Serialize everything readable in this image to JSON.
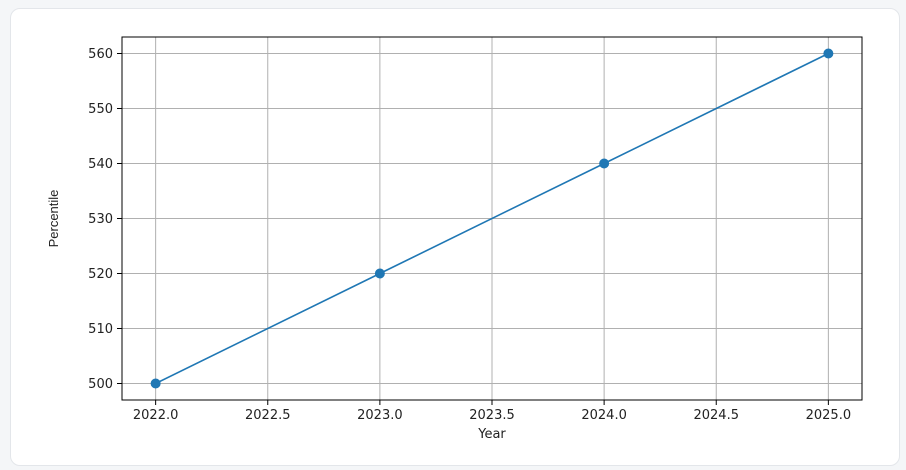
{
  "chart_data": {
    "type": "line",
    "title": "",
    "xlabel": "Year",
    "ylabel": "Percentile",
    "x": [
      2022,
      2023,
      2024,
      2025
    ],
    "series": [
      {
        "values": [
          500,
          520,
          540,
          560
        ],
        "color": "#1f77b4",
        "marker": "circle"
      }
    ],
    "xlim": [
      2021.85,
      2025.15
    ],
    "ylim": [
      497,
      563
    ],
    "xticks": [
      2022.0,
      2022.5,
      2023.0,
      2023.5,
      2024.0,
      2024.5,
      2025.0
    ],
    "xtick_labels": [
      "2022.0",
      "2022.5",
      "2023.0",
      "2023.5",
      "2024.0",
      "2024.5",
      "2025.0"
    ],
    "yticks": [
      500,
      510,
      520,
      530,
      540,
      550,
      560
    ],
    "ytick_labels": [
      "500",
      "510",
      "520",
      "530",
      "540",
      "550",
      "560"
    ],
    "grid": true,
    "grid_color": "#b0b0b0",
    "legend": "none"
  }
}
